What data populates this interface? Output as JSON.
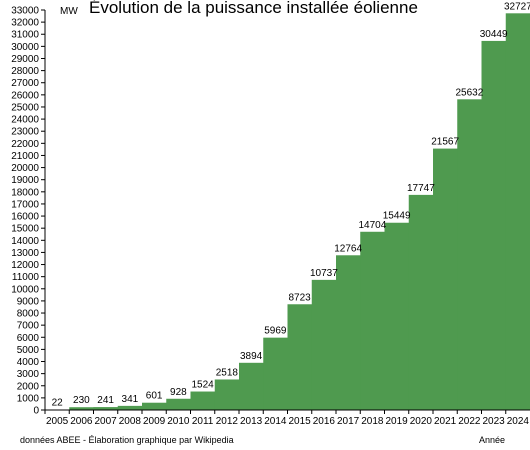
{
  "chart_data": {
    "type": "area",
    "title": "Évolution de la puissance installée éolienne",
    "ylabel": "MW",
    "xlabel": "Année",
    "source": "données ABEE - Élaboration graphique par Wikipedia",
    "x": [
      "2005",
      "2006",
      "2007",
      "2008",
      "2009",
      "2010",
      "2011",
      "2012",
      "2013",
      "2014",
      "2015",
      "2016",
      "2017",
      "2018",
      "2019",
      "2020",
      "2021",
      "2022",
      "2023",
      "2024"
    ],
    "values": [
      22,
      230,
      241,
      341,
      601,
      928,
      1524,
      2518,
      3894,
      5969,
      8723,
      10737,
      12764,
      14704,
      15449,
      17747,
      21567,
      25632,
      30449,
      32727
    ],
    "ylim": [
      0,
      33000
    ],
    "ytick_step": 1000,
    "grid": false,
    "legend": "none",
    "fill_color": "#4f9a4f",
    "step": "post"
  }
}
